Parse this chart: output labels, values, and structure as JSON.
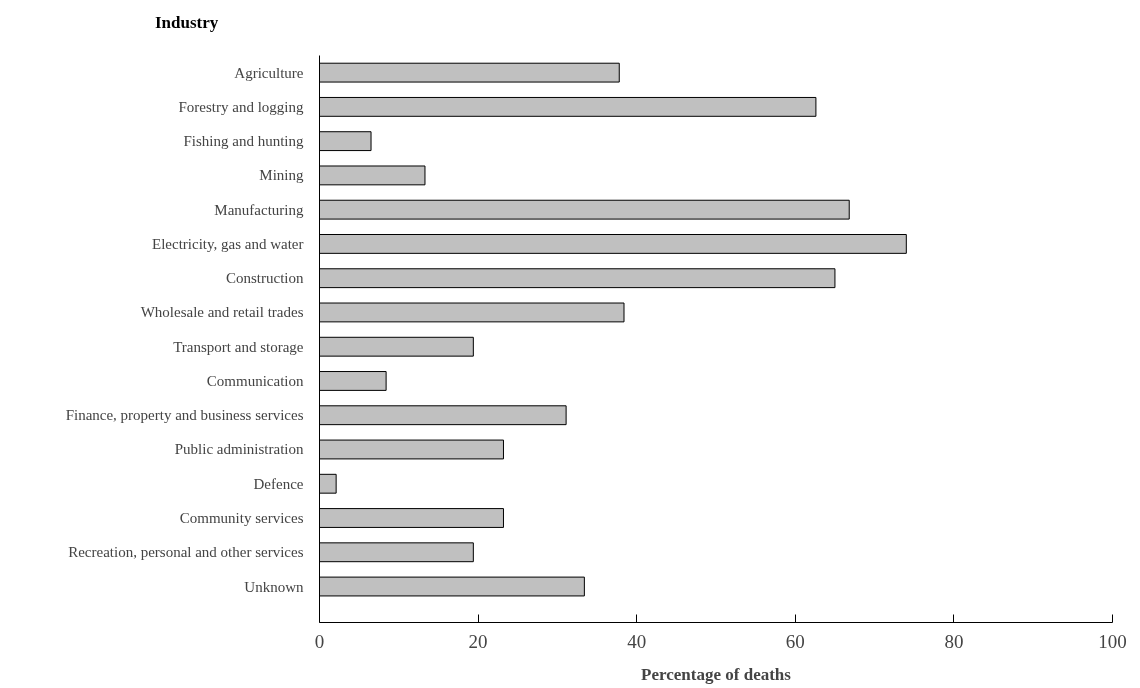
{
  "chart_data": {
    "type": "bar",
    "orientation": "horizontal",
    "ylabel": "Industry",
    "xlabel": "Percentage of deaths",
    "categories": [
      "Agriculture",
      "Forestry and logging",
      "Fishing and hunting",
      "Mining",
      "Manufacturing",
      "Electricity, gas and water",
      "Construction",
      "Wholesale and retail trades",
      "Transport and storage",
      "Communication",
      "Finance, property and business services",
      "Public administration",
      "Defence",
      "Community services",
      "Recreation, personal and other services",
      "Unknown"
    ],
    "values": [
      37.8,
      62.6,
      6.5,
      13.3,
      66.8,
      74.0,
      65.0,
      38.4,
      19.4,
      8.4,
      31.1,
      23.2,
      2.1,
      23.2,
      19.4,
      33.4
    ],
    "color": "#c0c0c0",
    "xlim": [
      0,
      100
    ],
    "xticks": [
      0,
      20,
      40,
      60,
      80,
      100
    ],
    "grid": false
  }
}
